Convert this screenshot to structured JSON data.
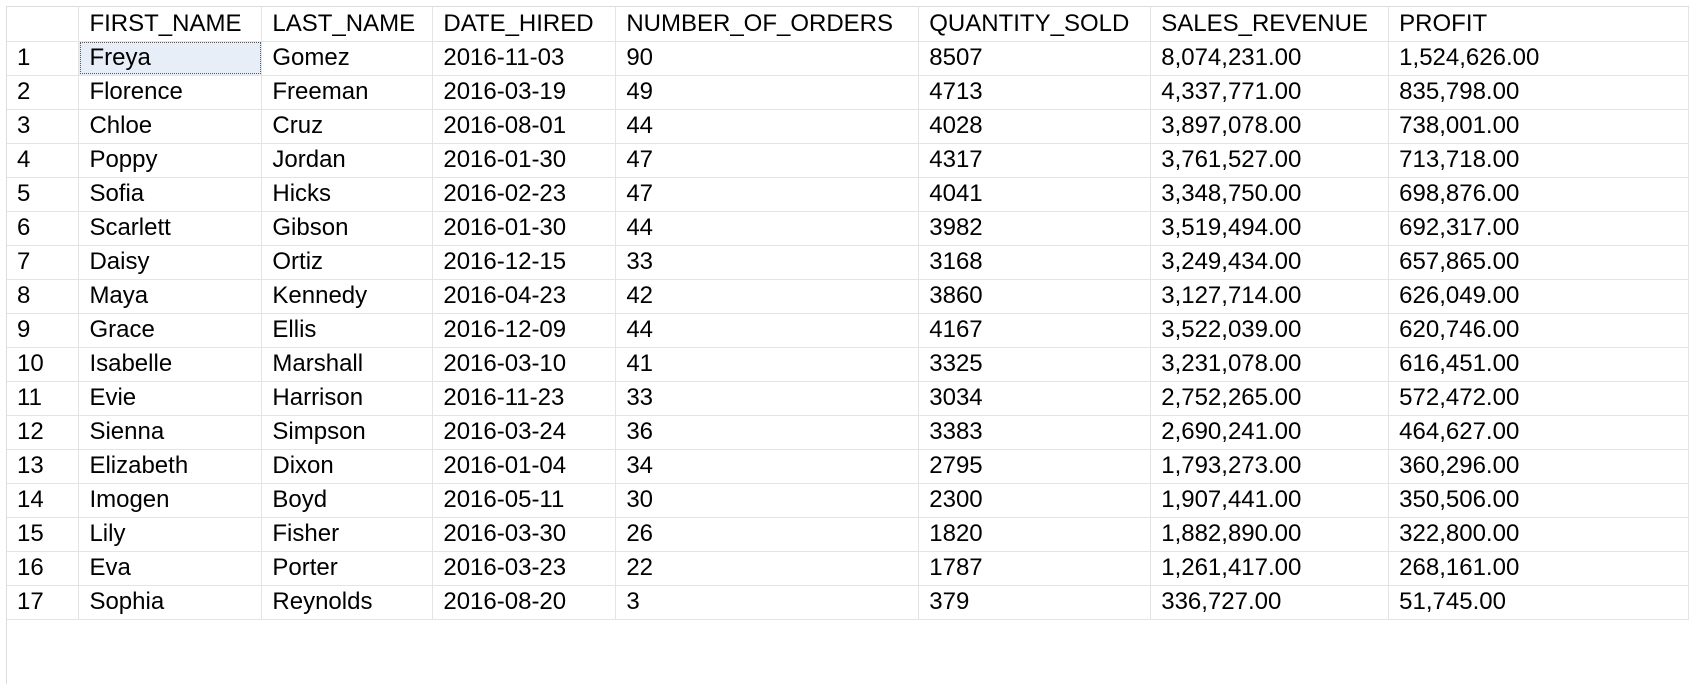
{
  "grid": {
    "columns": [
      "",
      "FIRST_NAME",
      "LAST_NAME",
      "DATE_HIRED",
      "NUMBER_OF_ORDERS",
      "QUANTITY_SOLD",
      "SALES_REVENUE",
      "PROFIT"
    ],
    "rows": [
      [
        "1",
        "Freya",
        "Gomez",
        "2016-11-03",
        "90",
        "8507",
        "8,074,231.00",
        "1,524,626.00"
      ],
      [
        "2",
        "Florence",
        "Freeman",
        "2016-03-19",
        "49",
        "4713",
        "4,337,771.00",
        "835,798.00"
      ],
      [
        "3",
        "Chloe",
        "Cruz",
        "2016-08-01",
        "44",
        "4028",
        "3,897,078.00",
        "738,001.00"
      ],
      [
        "4",
        "Poppy",
        "Jordan",
        "2016-01-30",
        "47",
        "4317",
        "3,761,527.00",
        "713,718.00"
      ],
      [
        "5",
        "Sofia",
        "Hicks",
        "2016-02-23",
        "47",
        "4041",
        "3,348,750.00",
        "698,876.00"
      ],
      [
        "6",
        "Scarlett",
        "Gibson",
        "2016-01-30",
        "44",
        "3982",
        "3,519,494.00",
        "692,317.00"
      ],
      [
        "7",
        "Daisy",
        "Ortiz",
        "2016-12-15",
        "33",
        "3168",
        "3,249,434.00",
        "657,865.00"
      ],
      [
        "8",
        "Maya",
        "Kennedy",
        "2016-04-23",
        "42",
        "3860",
        "3,127,714.00",
        "626,049.00"
      ],
      [
        "9",
        "Grace",
        "Ellis",
        "2016-12-09",
        "44",
        "4167",
        "3,522,039.00",
        "620,746.00"
      ],
      [
        "10",
        "Isabelle",
        "Marshall",
        "2016-03-10",
        "41",
        "3325",
        "3,231,078.00",
        "616,451.00"
      ],
      [
        "11",
        "Evie",
        "Harrison",
        "2016-11-23",
        "33",
        "3034",
        "2,752,265.00",
        "572,472.00"
      ],
      [
        "12",
        "Sienna",
        "Simpson",
        "2016-03-24",
        "36",
        "3383",
        "2,690,241.00",
        "464,627.00"
      ],
      [
        "13",
        "Elizabeth",
        "Dixon",
        "2016-01-04",
        "34",
        "2795",
        "1,793,273.00",
        "360,296.00"
      ],
      [
        "14",
        "Imogen",
        "Boyd",
        "2016-05-11",
        "30",
        "2300",
        "1,907,441.00",
        "350,506.00"
      ],
      [
        "15",
        "Lily",
        "Fisher",
        "2016-03-30",
        "26",
        "1820",
        "1,882,890.00",
        "322,800.00"
      ],
      [
        "16",
        "Eva",
        "Porter",
        "2016-03-23",
        "22",
        "1787",
        "1,261,417.00",
        "268,161.00"
      ],
      [
        "17",
        "Sophia",
        "Reynolds",
        "2016-08-20",
        "3",
        "379",
        "336,727.00",
        "51,745.00"
      ]
    ],
    "selected_cell": {
      "row": 0,
      "col": 1
    },
    "colors": {
      "grid_line": "#e4e4e4",
      "selected_background": "#e8eef7",
      "text": "#000000"
    }
  }
}
